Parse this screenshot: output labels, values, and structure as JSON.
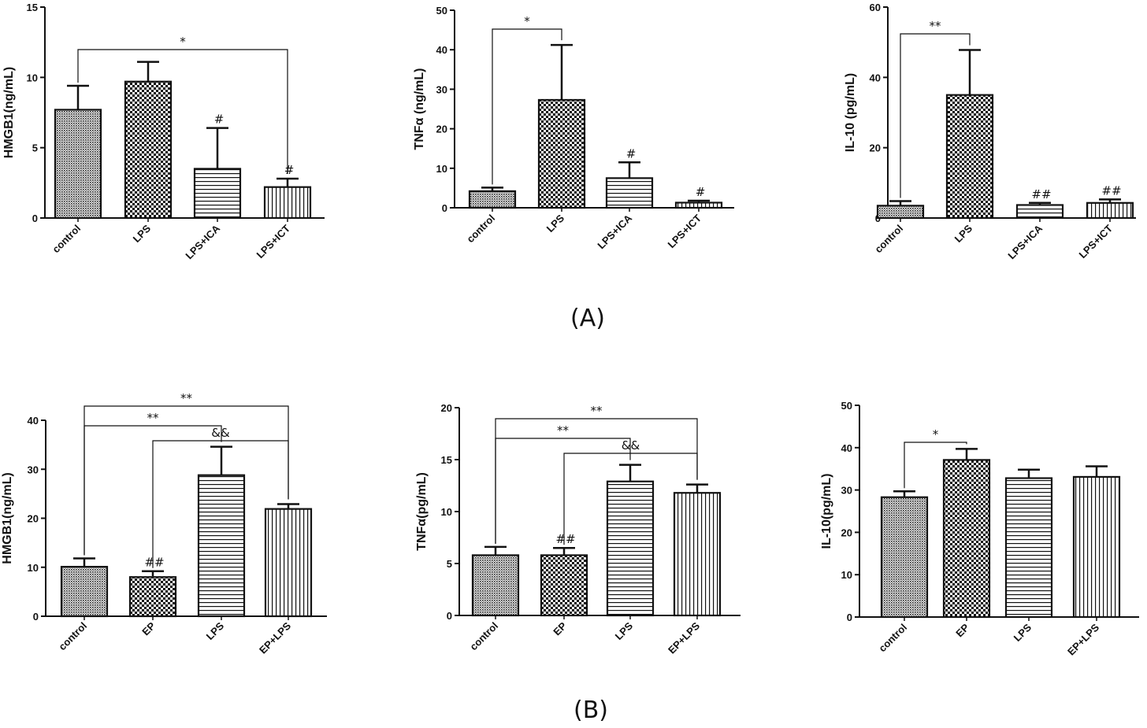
{
  "figure": {
    "panel_labels": [
      "(A)",
      "(B)"
    ]
  },
  "chart_data": [
    {
      "panel": "(A)",
      "type": "bar",
      "ylabel": "HMGB1(ng/mL)",
      "ylim": [
        0,
        15
      ],
      "yticks": [
        0,
        5,
        10,
        15
      ],
      "categories": [
        "control",
        "LPS",
        "LPS+ICA",
        "LPS+ICT"
      ],
      "values": [
        7.7,
        9.7,
        3.5,
        2.2
      ],
      "errors": [
        1.7,
        1.4,
        2.9,
        0.6
      ],
      "patterns": [
        "fine-dots",
        "checker",
        "horizontal",
        "vertical"
      ],
      "bar_labels": [
        "",
        "",
        "#",
        "#"
      ],
      "comparisons": [
        {
          "from": 0,
          "to": 3,
          "label": "*"
        }
      ]
    },
    {
      "panel": "(A)",
      "type": "bar",
      "ylabel": "TNFα (ng/mL)",
      "ylim": [
        0,
        50
      ],
      "yticks": [
        0,
        10,
        20,
        30,
        40,
        50
      ],
      "categories": [
        "control",
        "LPS",
        "LPS+ICA",
        "LPS+ICT"
      ],
      "values": [
        4.2,
        27.3,
        7.5,
        1.3
      ],
      "errors": [
        0.9,
        13.9,
        4.0,
        0.5
      ],
      "patterns": [
        "fine-dots",
        "checker",
        "horizontal",
        "vertical"
      ],
      "bar_labels": [
        "",
        "",
        "#",
        "#"
      ],
      "comparisons": [
        {
          "from": 0,
          "to": 1,
          "label": "*"
        }
      ]
    },
    {
      "panel": "(A)",
      "type": "bar",
      "ylabel": "IL-10 (pg/mL)",
      "ylim": [
        0,
        60
      ],
      "yticks": [
        0,
        20,
        40,
        60
      ],
      "categories": [
        "control",
        "LPS",
        "LPS+ICA",
        "LPS+ICT"
      ],
      "values": [
        3.5,
        35.0,
        3.7,
        4.3
      ],
      "errors": [
        1.3,
        12.8,
        0.6,
        1.0
      ],
      "patterns": [
        "fine-dots",
        "checker",
        "horizontal",
        "vertical"
      ],
      "bar_labels": [
        "",
        "",
        "##",
        "##"
      ],
      "comparisons": [
        {
          "from": 0,
          "to": 1,
          "label": "**"
        }
      ]
    },
    {
      "panel": "(B)",
      "type": "bar",
      "ylabel": "HMGB1(ng/mL)",
      "ylim": [
        0,
        40
      ],
      "yticks": [
        0,
        10,
        20,
        30,
        40
      ],
      "categories": [
        "control",
        "EP",
        "LPS",
        "EP+LPS"
      ],
      "values": [
        10.1,
        8.0,
        28.8,
        21.9
      ],
      "errors": [
        1.7,
        1.2,
        5.8,
        1.0
      ],
      "patterns": [
        "fine-dots",
        "checker",
        "horizontal",
        "vertical"
      ],
      "bar_labels": [
        "",
        "##",
        "",
        ""
      ],
      "comparisons": [
        {
          "from": 0,
          "to": 3,
          "label": "**"
        },
        {
          "from": 0,
          "to": 2,
          "label": "**"
        },
        {
          "from": 1,
          "to": 3,
          "label": "&&"
        }
      ]
    },
    {
      "panel": "(B)",
      "type": "bar",
      "ylabel": "TNFα(pg/mL)",
      "ylim": [
        0,
        20
      ],
      "yticks": [
        0,
        5,
        10,
        15,
        20
      ],
      "categories": [
        "control",
        "EP",
        "LPS",
        "EP+LPS"
      ],
      "values": [
        5.8,
        5.8,
        12.9,
        11.8
      ],
      "errors": [
        0.8,
        0.7,
        1.6,
        0.8
      ],
      "patterns": [
        "fine-dots",
        "checker",
        "horizontal",
        "vertical"
      ],
      "bar_labels": [
        "",
        "##",
        "",
        ""
      ],
      "comparisons": [
        {
          "from": 0,
          "to": 3,
          "label": "**"
        },
        {
          "from": 0,
          "to": 2,
          "label": "**"
        },
        {
          "from": 1,
          "to": 3,
          "label": "&&"
        }
      ]
    },
    {
      "panel": "(B)",
      "type": "bar",
      "ylabel": "IL-10(pg/mL)",
      "ylim": [
        0,
        50
      ],
      "yticks": [
        0,
        10,
        20,
        30,
        40,
        50
      ],
      "categories": [
        "control",
        "EP",
        "LPS",
        "EP+LPS"
      ],
      "values": [
        28.3,
        37.1,
        32.8,
        33.1
      ],
      "errors": [
        1.4,
        2.6,
        2.0,
        2.5
      ],
      "patterns": [
        "fine-dots",
        "checker",
        "horizontal",
        "vertical"
      ],
      "bar_labels": [
        "",
        "",
        "",
        ""
      ],
      "comparisons": [
        {
          "from": 0,
          "to": 1,
          "label": "*"
        }
      ]
    }
  ]
}
